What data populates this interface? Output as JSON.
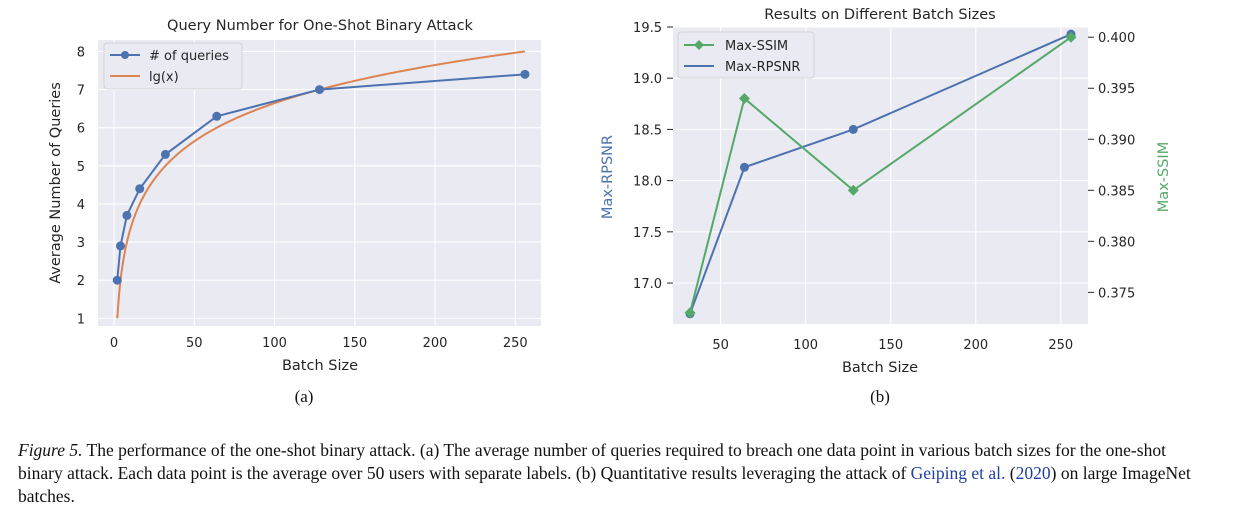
{
  "chart_data": [
    {
      "type": "line",
      "title": "Query Number for One-Shot Binary Attack",
      "xlabel": "Batch Size",
      "ylabel": "Average Number of Queries",
      "xlim": [
        -10,
        266
      ],
      "ylim": [
        0.8,
        8.3
      ],
      "xticks": [
        0,
        50,
        100,
        150,
        200,
        250
      ],
      "yticks": [
        1,
        2,
        3,
        4,
        5,
        6,
        7,
        8
      ],
      "grid": true,
      "legend_position": "top-left",
      "series": [
        {
          "name": "# of queries",
          "color": "#4c72b0",
          "marker": "circle",
          "x": [
            2,
            4,
            8,
            16,
            32,
            64,
            128,
            256
          ],
          "y": [
            2.0,
            2.9,
            3.7,
            4.4,
            5.3,
            6.3,
            7.0,
            7.4
          ]
        },
        {
          "name": "lg(x)",
          "color": "#dd8452",
          "marker": "none",
          "function": "log2",
          "x_range": [
            2,
            256
          ]
        }
      ],
      "sub_label": "(a)"
    },
    {
      "type": "line",
      "title": "Results on Different Batch Sizes",
      "xlabel": "Batch Size",
      "ylabel": "Max-RPSNR",
      "ylabel_right": "Max-SSIM",
      "xlim": [
        22,
        266
      ],
      "ylim": [
        16.6,
        19.5
      ],
      "ylim_right": [
        0.3719,
        0.401
      ],
      "xticks": [
        50,
        100,
        150,
        200,
        250
      ],
      "yticks": [
        17.0,
        17.5,
        18.0,
        18.5,
        19.0,
        19.5
      ],
      "yticks_right": [
        0.375,
        0.38,
        0.385,
        0.39,
        0.395,
        0.4
      ],
      "grid": true,
      "legend_position": "top-left",
      "series": [
        {
          "name": "Max-SSIM",
          "axis": "right",
          "color": "#55a868",
          "marker": "diamond",
          "x": [
            32,
            64,
            128,
            256
          ],
          "y": [
            0.373,
            0.394,
            0.385,
            0.4
          ]
        },
        {
          "name": "Max-RPSNR",
          "axis": "left",
          "color": "#4c72b0",
          "marker": "circle",
          "x": [
            32,
            64,
            128,
            256
          ],
          "y": [
            16.7,
            18.13,
            18.5,
            19.43
          ]
        }
      ],
      "sub_label": "(b)"
    }
  ],
  "caption": {
    "label": "Figure 5.",
    "text1": " The performance of the one-shot binary attack. (a) The average number of queries required to breach one data point in various batch sizes for the one-shot binary attack. Each data point is the average over 50 users with separate labels. (b) Quantitative results leveraging the attack of ",
    "cite_author": "Geiping et al.",
    "cite_open": " (",
    "cite_year": "2020",
    "cite_close": ")",
    "text2": " on large ImageNet batches."
  }
}
